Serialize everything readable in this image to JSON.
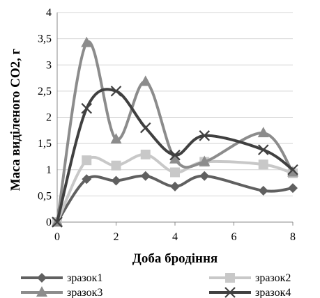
{
  "chart_data": {
    "type": "line",
    "title": "",
    "xlabel": "Доба бродіння",
    "ylabel": "Маса виділеного CO2, г",
    "xlim": [
      0,
      8
    ],
    "ylim": [
      0,
      4
    ],
    "x_ticks": [
      "0",
      "2",
      "4",
      "6",
      "8"
    ],
    "y_ticks": [
      "0",
      "0,5",
      "1",
      "1,5",
      "2",
      "2,5",
      "3",
      "3,5",
      "4"
    ],
    "grid": "horizontal",
    "legend_position": "bottom",
    "smooth": true,
    "series": [
      {
        "name": "зразок1",
        "color": "#606060",
        "marker": "diamond",
        "points": [
          [
            0,
            0
          ],
          [
            1,
            0.82
          ],
          [
            2,
            0.79
          ],
          [
            3,
            0.88
          ],
          [
            4,
            0.68
          ],
          [
            5,
            0.88
          ],
          [
            7,
            0.6
          ],
          [
            8,
            0.65
          ]
        ]
      },
      {
        "name": "зразок2",
        "color": "#c8c8c8",
        "marker": "square",
        "points": [
          [
            0,
            0
          ],
          [
            1,
            1.18
          ],
          [
            2,
            1.08
          ],
          [
            3,
            1.29
          ],
          [
            4,
            0.95
          ],
          [
            5,
            1.15
          ],
          [
            7,
            1.1
          ],
          [
            8,
            0.93
          ]
        ]
      },
      {
        "name": "зразок3",
        "color": "#8c8c8c",
        "marker": "triangle",
        "points": [
          [
            0,
            0
          ],
          [
            1,
            3.42
          ],
          [
            2,
            1.58
          ],
          [
            3,
            2.68
          ],
          [
            4,
            1.2
          ],
          [
            5,
            1.15
          ],
          [
            7,
            1.7
          ],
          [
            8,
            0.95
          ]
        ]
      },
      {
        "name": "зразок4",
        "color": "#404040",
        "marker": "x",
        "points": [
          [
            0,
            0
          ],
          [
            1,
            2.17
          ],
          [
            2,
            2.5
          ],
          [
            3,
            1.8
          ],
          [
            4,
            1.28
          ],
          [
            5,
            1.65
          ],
          [
            7,
            1.38
          ],
          [
            8,
            1.0
          ]
        ]
      }
    ]
  }
}
